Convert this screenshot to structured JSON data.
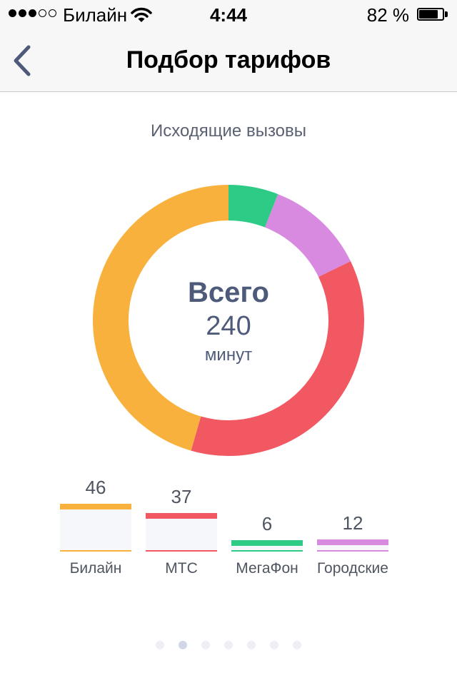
{
  "status_bar": {
    "signal": [
      true,
      true,
      true,
      false,
      false
    ],
    "carrier": "Билайн",
    "time": "4:44",
    "battery_text": "82 %",
    "battery_level": 0.82
  },
  "nav": {
    "title": "Подбор тарифов",
    "back_icon": "chevron-left-icon"
  },
  "chart_data": {
    "type": "pie",
    "title": "Исходящие вызовы",
    "center": {
      "label": "Всего",
      "value": "240",
      "unit": "минут"
    },
    "categories": [
      "Билайн",
      "МТС",
      "МегаФон",
      "Городские"
    ],
    "values": [
      46,
      37,
      6,
      12
    ],
    "colors": [
      "#f9b13e",
      "#f25862",
      "#2ecb87",
      "#d88ae0"
    ],
    "slice_order": [
      "МегаФон",
      "Городские",
      "МТС",
      "Билайн"
    ],
    "donut": true
  },
  "pager": {
    "count": 7,
    "active": 1
  }
}
